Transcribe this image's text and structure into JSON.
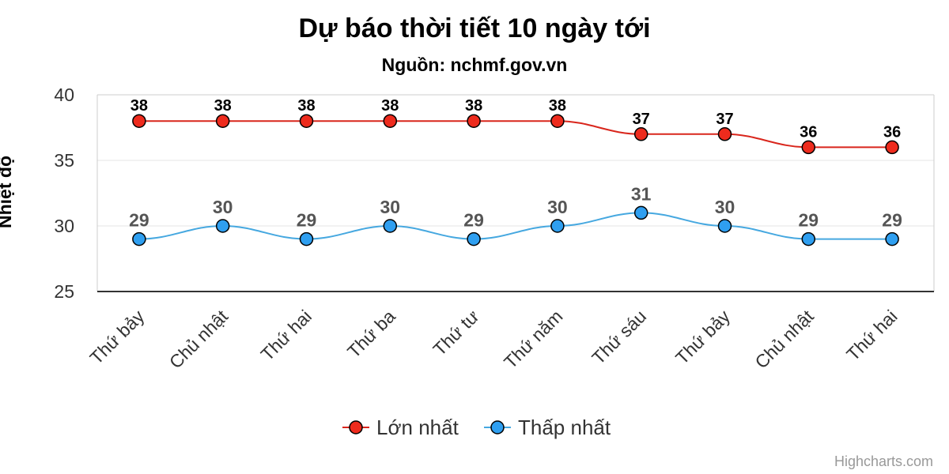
{
  "chart_data": {
    "type": "line",
    "title": "Dự báo thời tiết 10 ngày tới",
    "subtitle": "Nguồn: nchmf.gov.vn",
    "xlabel": "",
    "ylabel": "Nhiệt độ",
    "ylim": [
      25,
      40
    ],
    "yticks": [
      25,
      30,
      35,
      40
    ],
    "grid": true,
    "legend_position": "bottom-center",
    "categories": [
      "Thứ bảy",
      "Chủ nhật",
      "Thứ hai",
      "Thứ ba",
      "Thứ tư",
      "Thứ năm",
      "Thứ sáu",
      "Thứ bảy",
      "Chủ nhật",
      "Thứ hai"
    ],
    "series": [
      {
        "name": "Lớn nhất",
        "color": "#d9261c",
        "marker_color": "#ee2b1d",
        "values": [
          38,
          38,
          38,
          38,
          38,
          38,
          37,
          37,
          36,
          36
        ]
      },
      {
        "name": "Thấp nhất",
        "color": "#46a8e0",
        "marker_color": "#2f9ff0",
        "values": [
          29,
          30,
          29,
          30,
          29,
          30,
          31,
          30,
          29,
          29
        ]
      }
    ]
  },
  "credits": "Highcharts.com"
}
